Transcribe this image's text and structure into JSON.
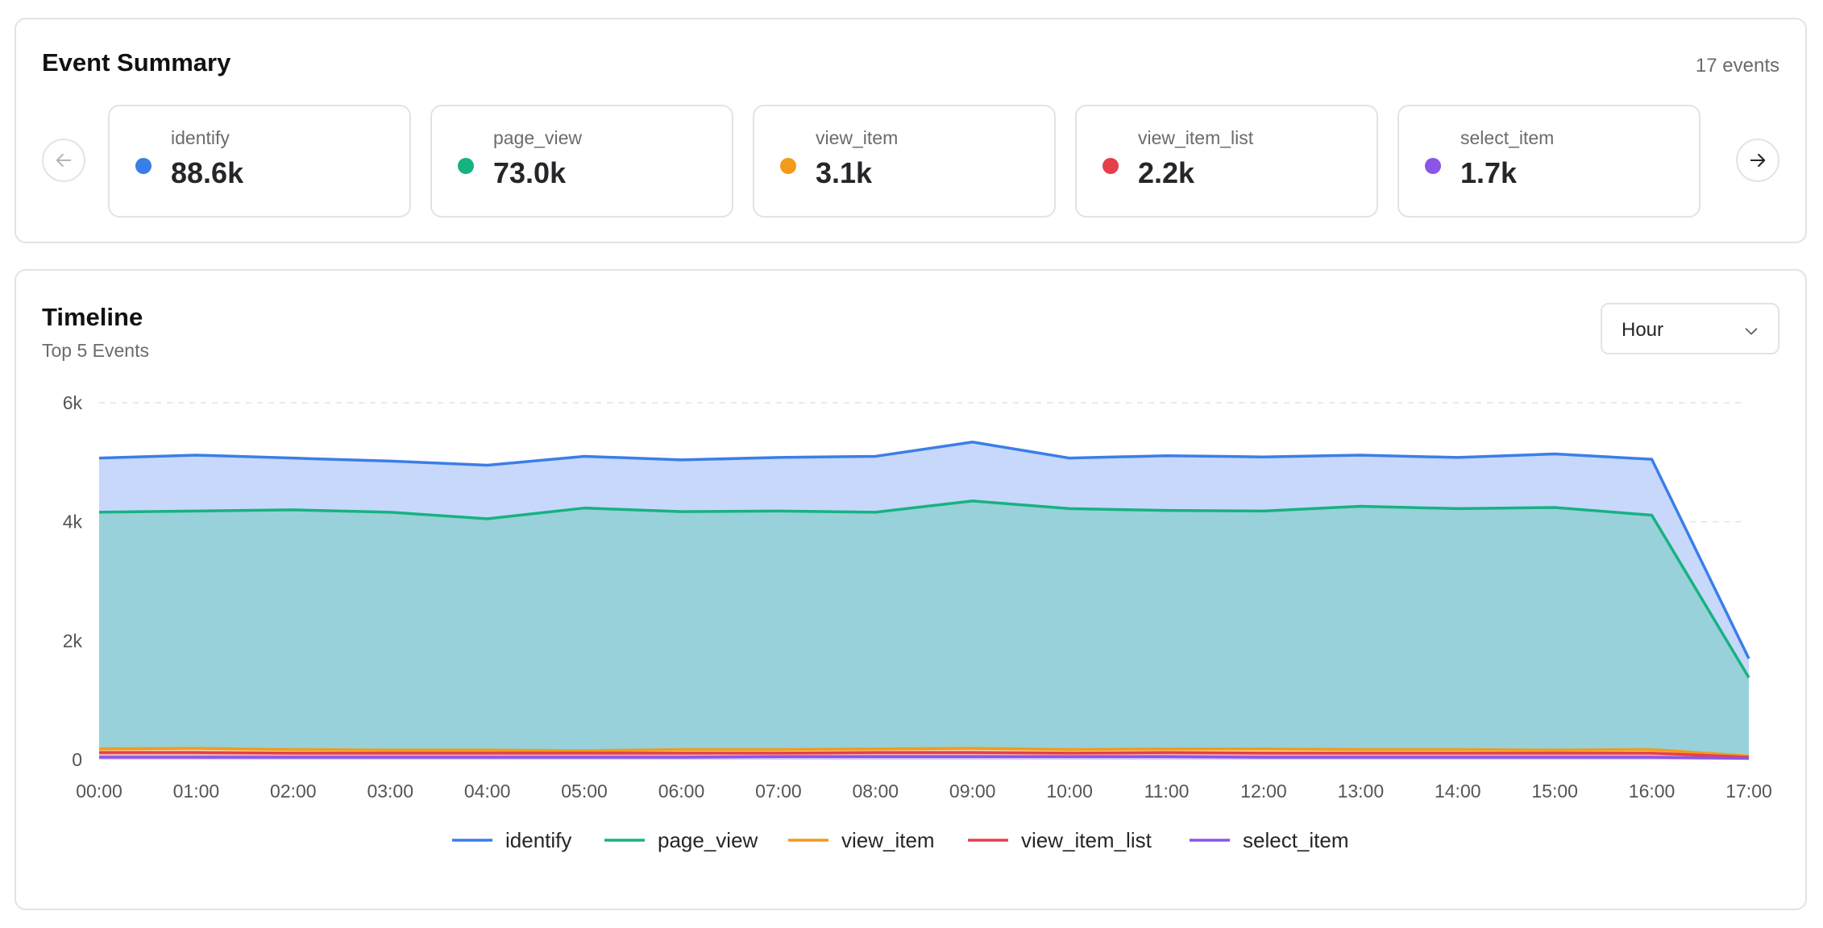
{
  "summary": {
    "title": "Event Summary",
    "events_count": "17 events",
    "prev_icon": "arrow-left-icon",
    "next_icon": "arrow-right-icon",
    "cards": [
      {
        "name": "identify",
        "value": "88.6k",
        "color": "#3b7ee8"
      },
      {
        "name": "page_view",
        "value": "73.0k",
        "color": "#17b281"
      },
      {
        "name": "view_item",
        "value": "3.1k",
        "color": "#f29a1a"
      },
      {
        "name": "view_item_list",
        "value": "2.2k",
        "color": "#e5404a"
      },
      {
        "name": "select_item",
        "value": "1.7k",
        "color": "#8b55e8"
      }
    ]
  },
  "timeline": {
    "title": "Timeline",
    "subtitle": "Top 5 Events",
    "granularity": "Hour",
    "granularity_icon": "chevron-down-icon"
  },
  "chart_data": {
    "type": "area",
    "x": [
      "00:00",
      "01:00",
      "02:00",
      "03:00",
      "04:00",
      "05:00",
      "06:00",
      "07:00",
      "08:00",
      "09:00",
      "10:00",
      "11:00",
      "12:00",
      "13:00",
      "14:00",
      "15:00",
      "16:00",
      "17:00"
    ],
    "y_ticks": [
      "0",
      "2k",
      "4k",
      "6k"
    ],
    "ylim": [
      0,
      6000
    ],
    "grid": true,
    "legend_position": "bottom",
    "series": [
      {
        "name": "identify",
        "color": "#3b7ee8",
        "fill": "#c7d8fb",
        "values": [
          5070,
          5120,
          5070,
          5020,
          4950,
          5100,
          5040,
          5080,
          5100,
          5340,
          5070,
          5110,
          5090,
          5120,
          5080,
          5140,
          5050,
          1700
        ]
      },
      {
        "name": "page_view",
        "color": "#17b281",
        "fill": "#98d1d9",
        "values": [
          4160,
          4180,
          4200,
          4160,
          4050,
          4230,
          4170,
          4180,
          4160,
          4350,
          4220,
          4190,
          4180,
          4260,
          4220,
          4240,
          4110,
          1380
        ]
      },
      {
        "name": "view_item",
        "color": "#f29a1a",
        "fill": "#f7d8a6",
        "values": [
          180,
          190,
          170,
          160,
          160,
          150,
          170,
          170,
          180,
          190,
          170,
          180,
          180,
          170,
          170,
          160,
          170,
          60
        ]
      },
      {
        "name": "view_item_list",
        "color": "#e5404a",
        "fill": "#f3b0b4",
        "values": [
          120,
          120,
          110,
          110,
          110,
          110,
          110,
          110,
          120,
          120,
          110,
          120,
          110,
          110,
          110,
          110,
          110,
          40
        ]
      },
      {
        "name": "select_item",
        "color": "#8b55e8",
        "fill": "#d5c1f8",
        "values": [
          40,
          40,
          40,
          40,
          40,
          40,
          40,
          50,
          50,
          50,
          50,
          50,
          40,
          40,
          40,
          40,
          40,
          20
        ]
      }
    ]
  }
}
